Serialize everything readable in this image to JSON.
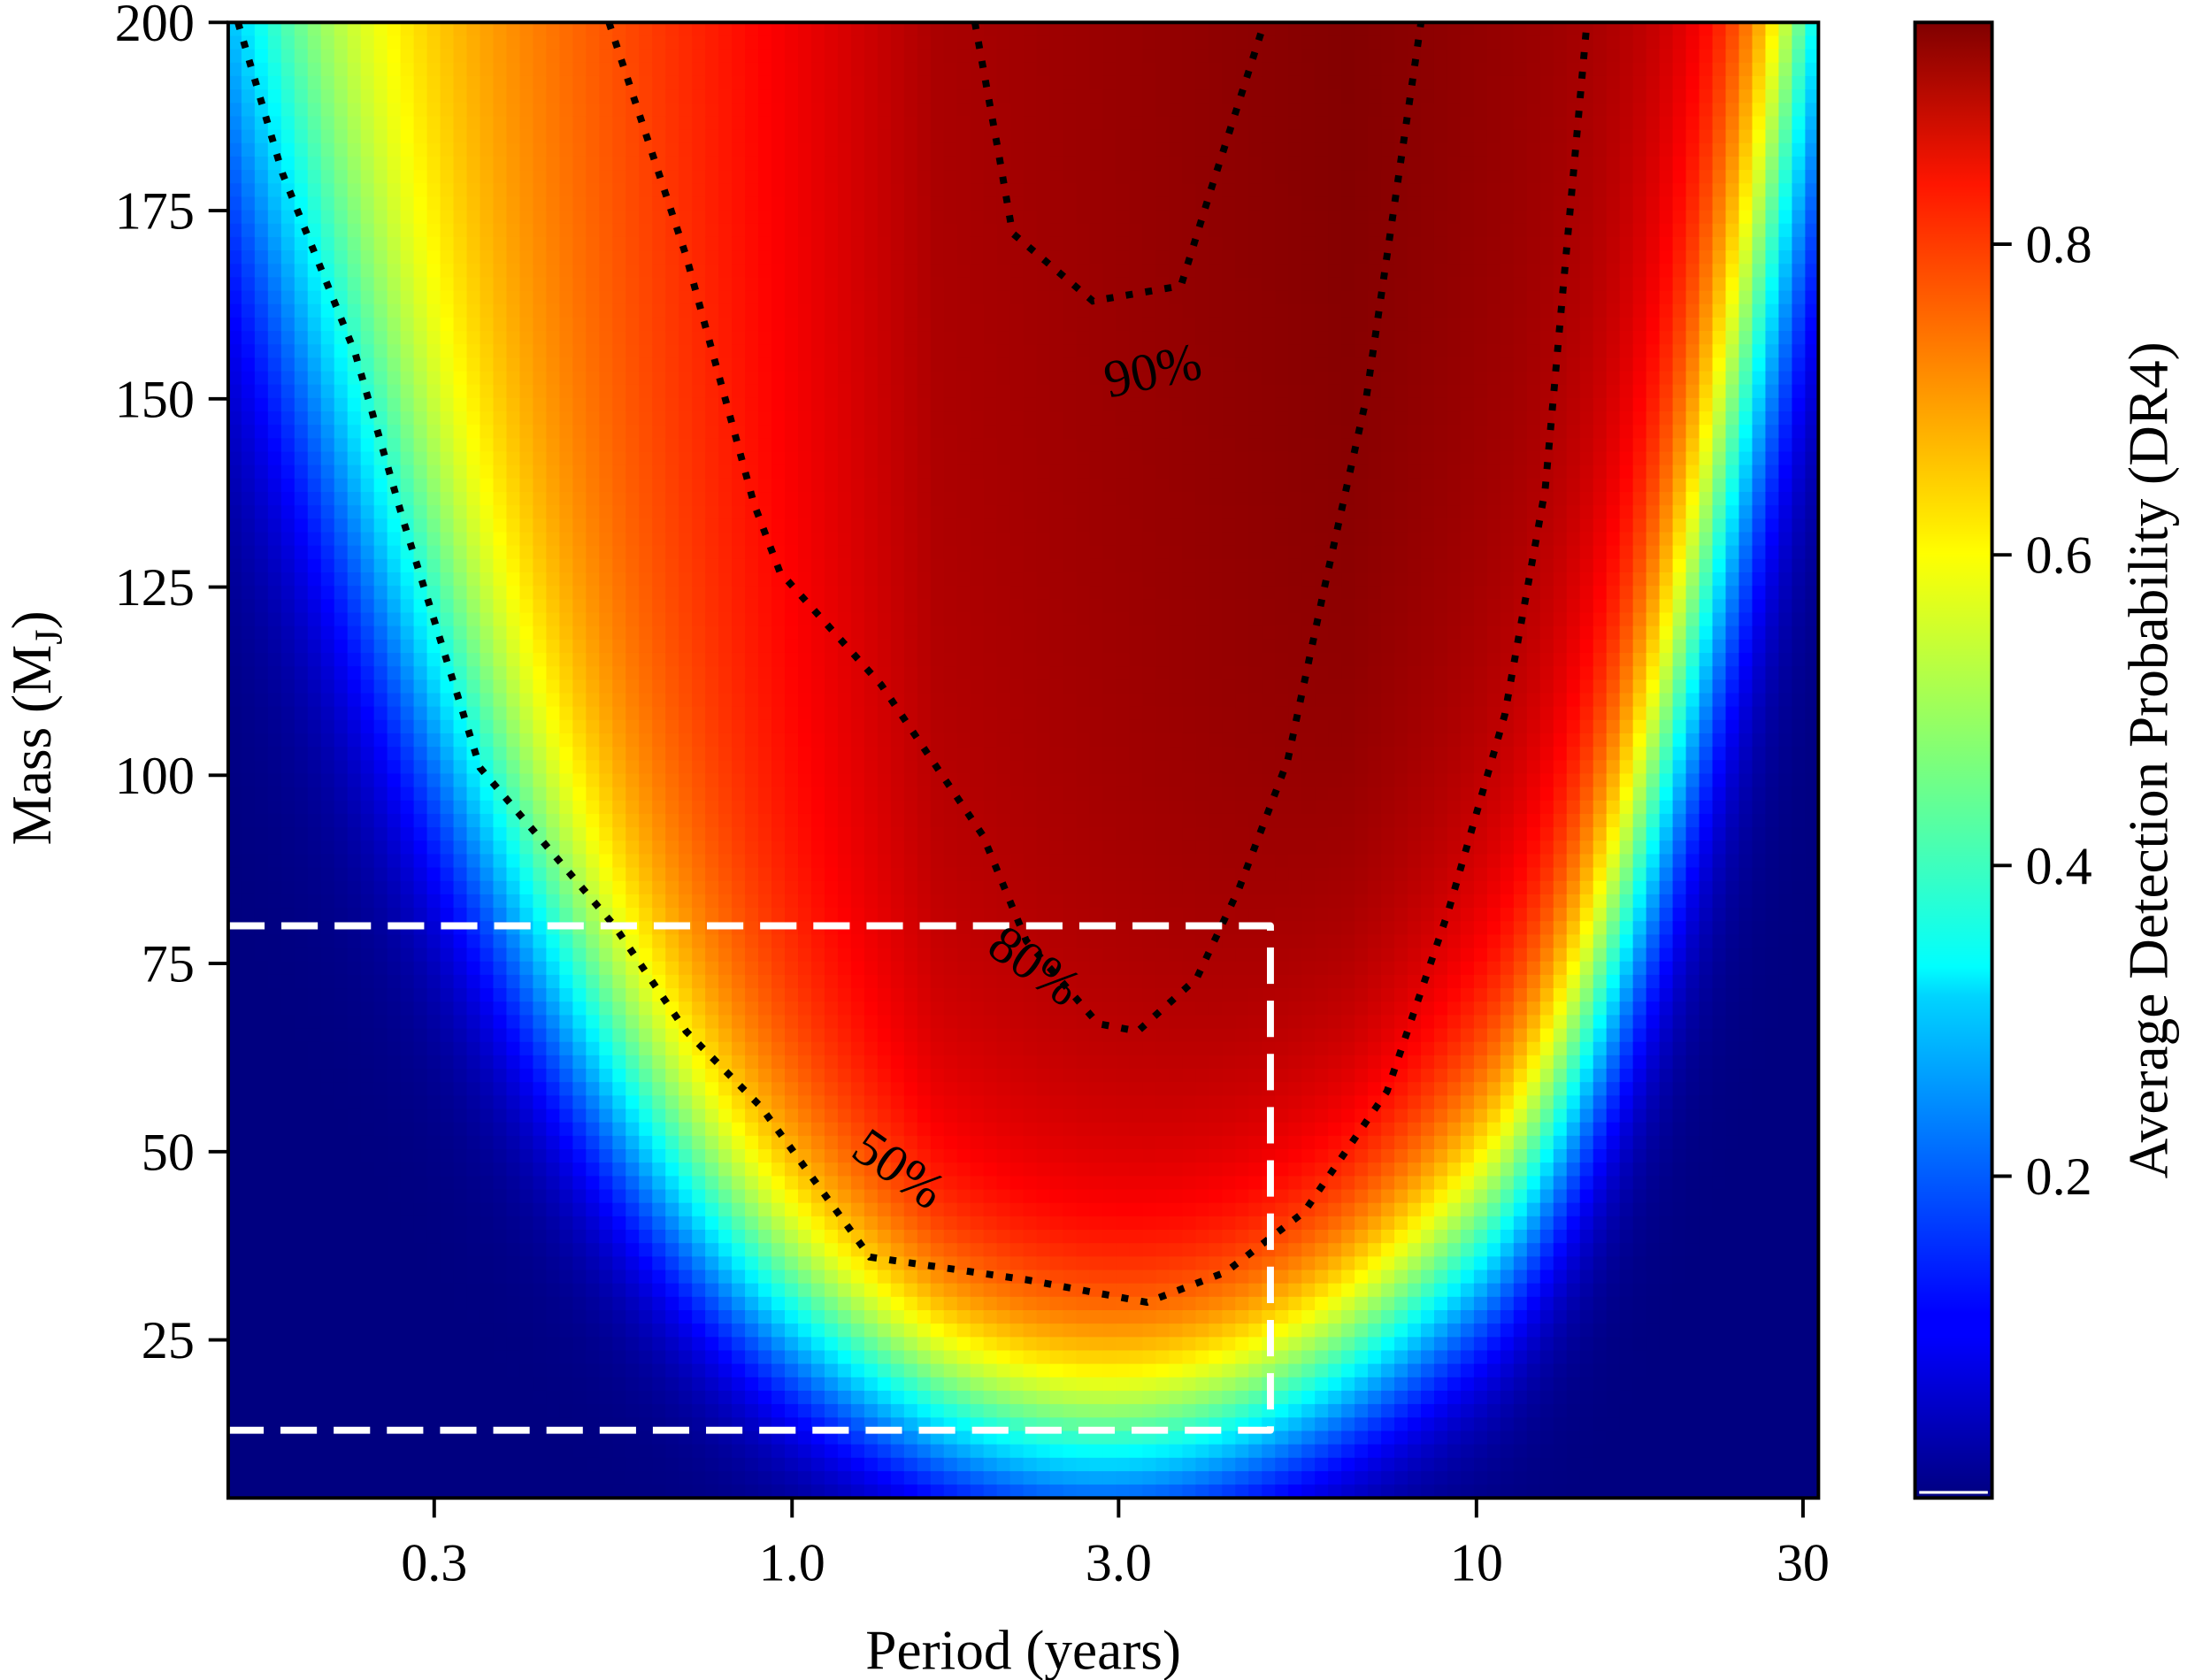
{
  "chart_data": {
    "type": "heatmap",
    "title": "",
    "xlabel": "Period (years)",
    "ylabel": "Mass (M",
    "ylabel_subscript": "J",
    "ylabel_close": ")",
    "xscale": "log",
    "xlim": [
      0.15,
      31.6
    ],
    "ylim": [
      4,
      200
    ],
    "xticks": [
      0.3,
      1.0,
      3.0,
      10,
      30
    ],
    "xtick_labels": [
      "0.3",
      "1.0",
      "3.0",
      "10",
      "30"
    ],
    "yticks": [
      25,
      50,
      75,
      100,
      125,
      150,
      175,
      200
    ],
    "ytick_labels": [
      "25",
      "50",
      "75",
      "100",
      "125",
      "150",
      "175",
      "200"
    ],
    "grid": false,
    "colormap": "jet",
    "colorbar": {
      "label": "Average Detection Probability (DR4)",
      "range": [
        0.0,
        0.95
      ],
      "ticks": [
        0.2,
        0.4,
        0.6,
        0.8
      ],
      "tick_labels": [
        "0.2",
        "0.4",
        "0.6",
        "0.8"
      ]
    },
    "contours": [
      {
        "level": 0.5,
        "label": "50%",
        "style": "dotted",
        "color": "#000000",
        "points_period_mass": [
          [
            0.155,
            200
          ],
          [
            0.18,
            180
          ],
          [
            0.23,
            156
          ],
          [
            0.27,
            134
          ],
          [
            0.35,
            101
          ],
          [
            0.55,
            80
          ],
          [
            0.7,
            66
          ],
          [
            0.9,
            56
          ],
          [
            1.3,
            36
          ],
          [
            2.2,
            33
          ],
          [
            3.3,
            30
          ],
          [
            4.3,
            34
          ],
          [
            5.6,
            42
          ],
          [
            7.4,
            58
          ],
          [
            9.1,
            82
          ],
          [
            11,
            108
          ],
          [
            12.6,
            138
          ],
          [
            14.5,
            200
          ]
        ]
      },
      {
        "level": 0.8,
        "label": "80%",
        "style": "dotted",
        "color": "#000000",
        "points_period_mass": [
          [
            0.54,
            200
          ],
          [
            0.7,
            169
          ],
          [
            0.88,
            136
          ],
          [
            0.96,
            127
          ],
          [
            1.35,
            112
          ],
          [
            1.9,
            92
          ],
          [
            2.2,
            78
          ],
          [
            2.8,
            67
          ],
          [
            3.2,
            66
          ],
          [
            3.9,
            73
          ],
          [
            4.5,
            85
          ],
          [
            5.3,
            102
          ],
          [
            6.0,
            125
          ],
          [
            6.9,
            150
          ],
          [
            8.3,
            200
          ]
        ]
      },
      {
        "level": 0.9,
        "label": "90%",
        "style": "dotted",
        "color": "#000000",
        "points_period_mass": [
          [
            1.85,
            200
          ],
          [
            2.0,
            183
          ],
          [
            2.1,
            172
          ],
          [
            2.75,
            163
          ],
          [
            3.7,
            165
          ],
          [
            4.1,
            178
          ],
          [
            4.9,
            200
          ]
        ]
      }
    ],
    "annotations": [
      {
        "type": "dashed-rectangle",
        "color": "#ffffff",
        "period_range": [
          0.15,
          5.0
        ],
        "mass_range": [
          13,
          80
        ]
      }
    ],
    "peak": {
      "period": 6.5,
      "mass": 200,
      "value": 0.95
    }
  }
}
